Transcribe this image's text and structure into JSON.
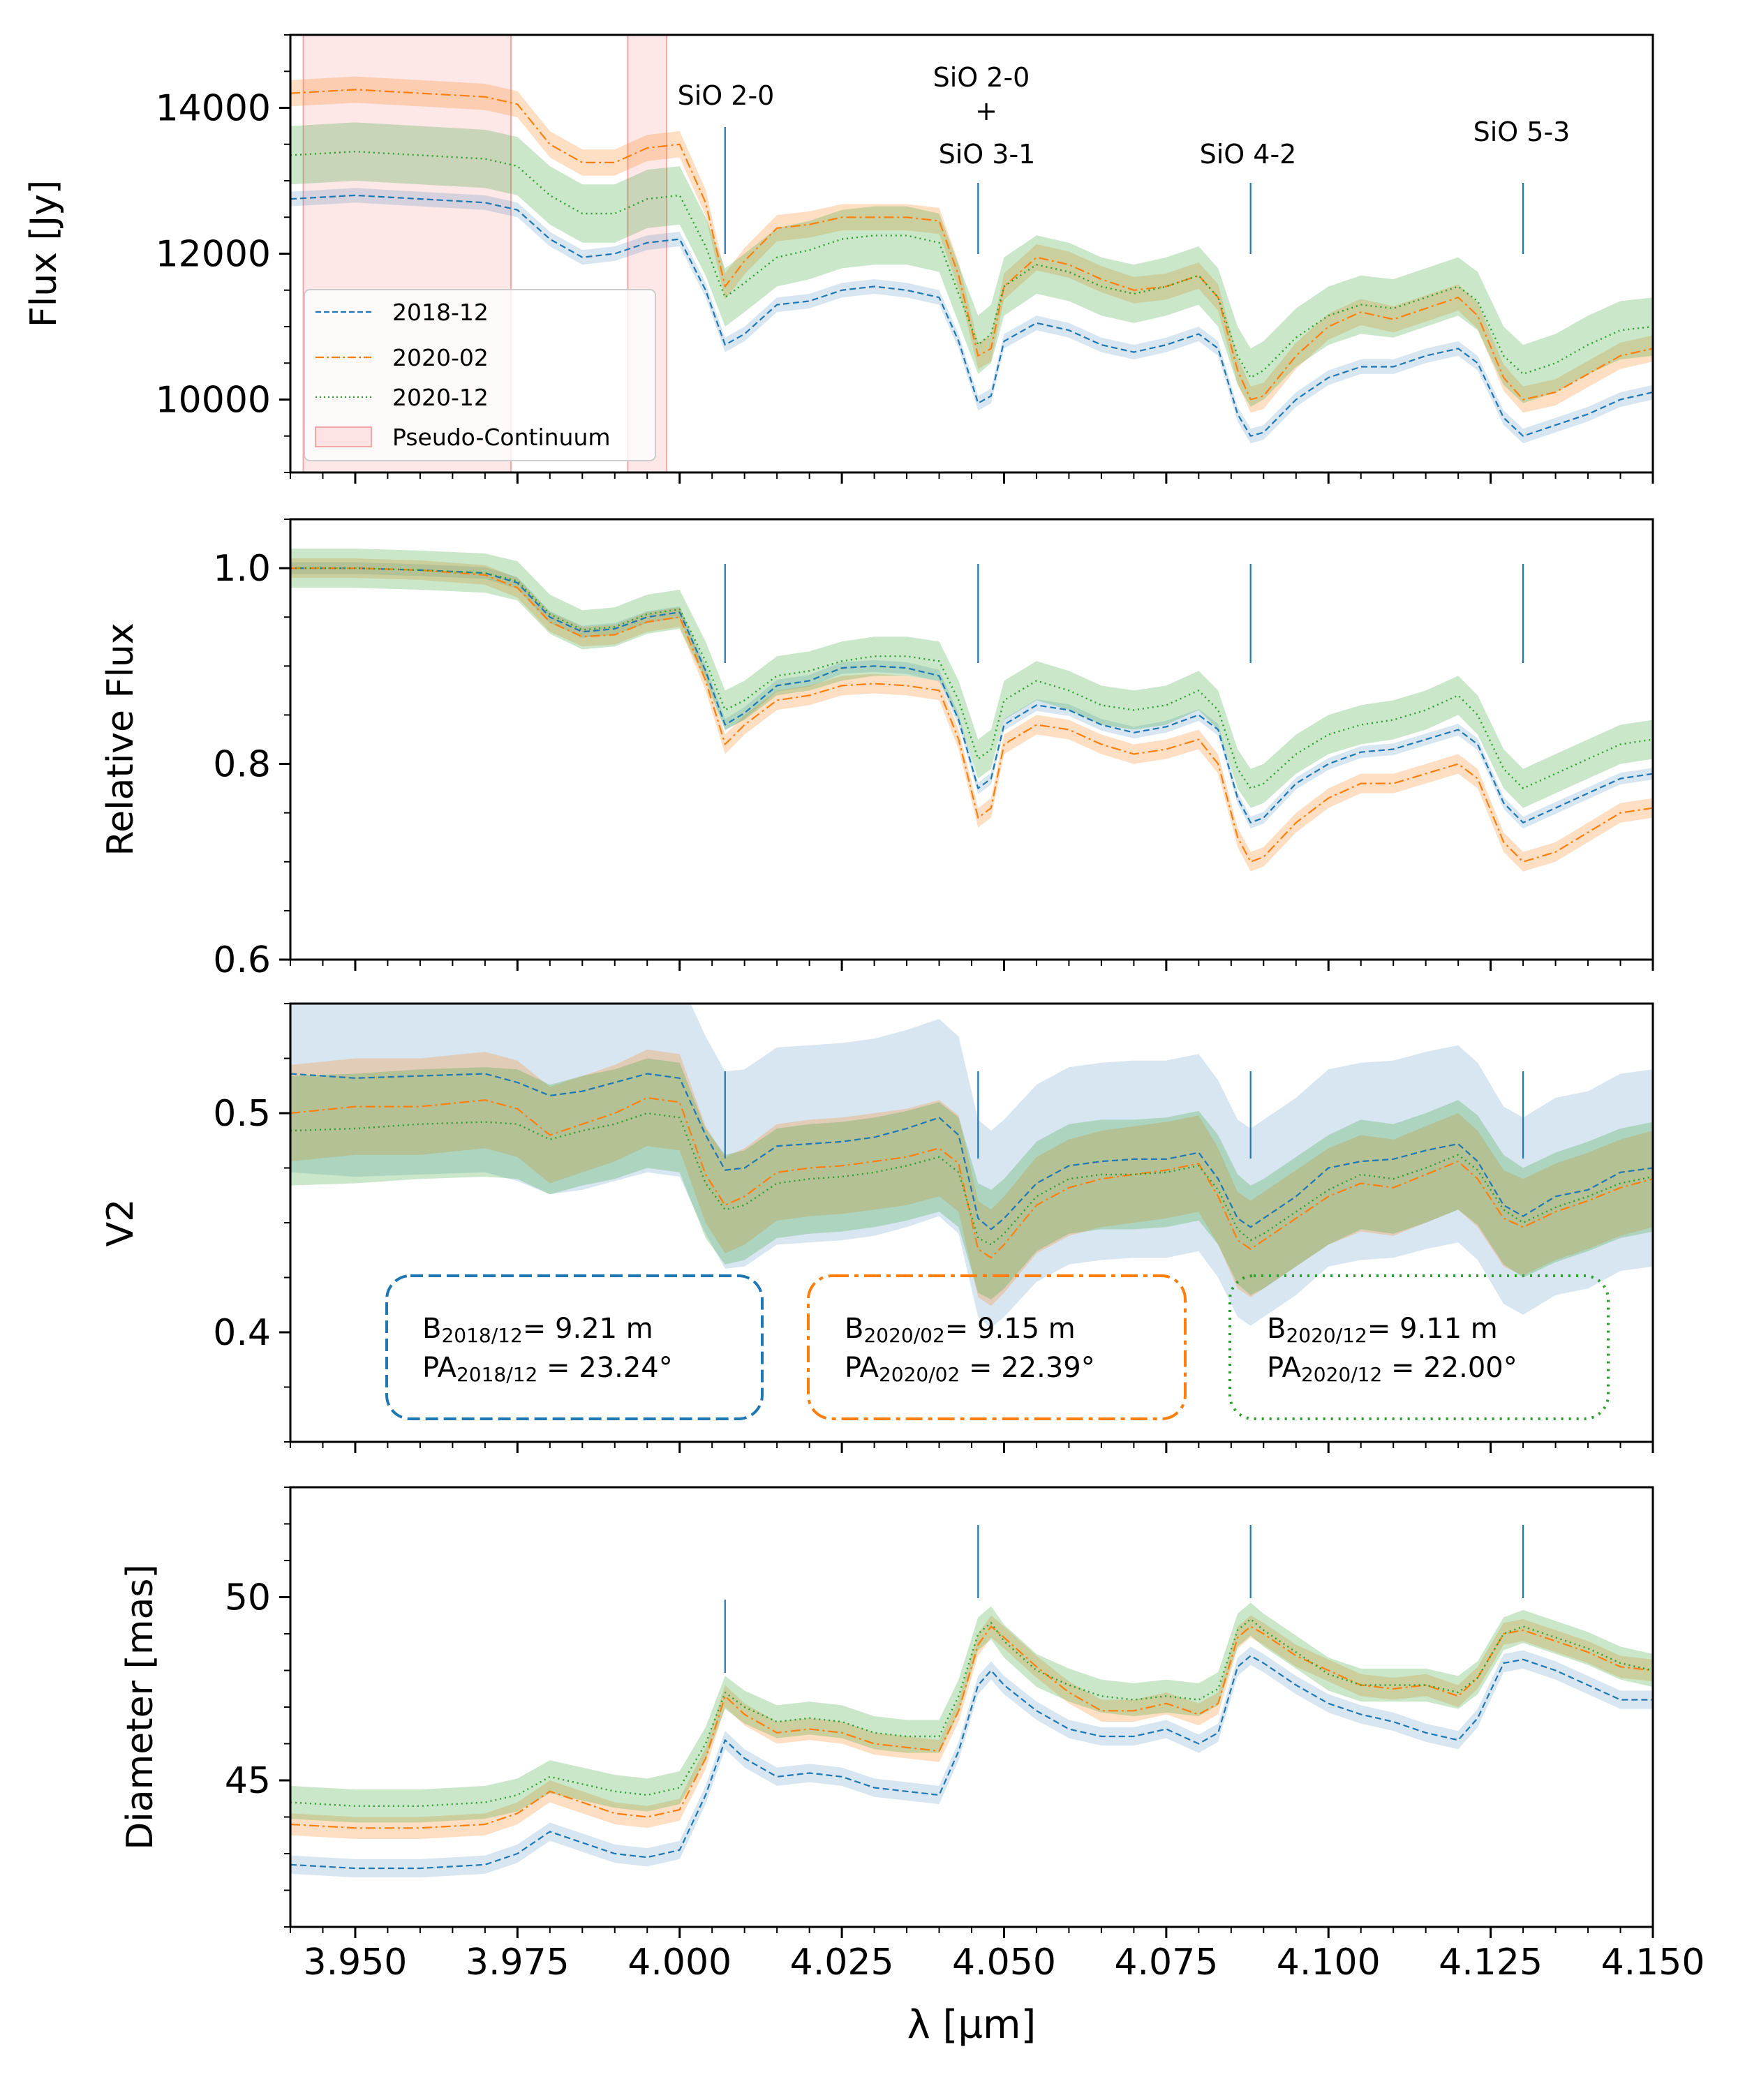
{
  "figure": {
    "xlabel": "λ [µm]",
    "x_ticks": [
      "3.950",
      "3.975",
      "4.000",
      "4.025",
      "4.050",
      "4.075",
      "4.100",
      "4.125",
      "4.150"
    ],
    "xlim": [
      3.94,
      4.15
    ]
  },
  "colors": {
    "2018-12": "#1f77b4",
    "2020-02": "#ff7f0e",
    "2020-12": "#2ca02c",
    "continuum": "#f4a7a7"
  },
  "legend": {
    "placement": "lower-left of top panel",
    "entries": [
      "2018-12",
      "2020-02",
      "2020-12",
      "Pseudo-Continuum"
    ]
  },
  "line_markers": [
    {
      "label": "SiO 2-0",
      "x": 4.007
    },
    {
      "label_lines": [
        "SiO 2-0",
        "+",
        "SiO 3-1"
      ],
      "x": 4.046
    },
    {
      "label": "SiO 4-2",
      "x": 4.088
    },
    {
      "label": "SiO 5-3",
      "x": 4.13
    }
  ],
  "pseudo_continuum": [
    [
      3.942,
      3.974
    ],
    [
      3.992,
      3.998
    ]
  ],
  "baselines": [
    {
      "date": "2018/12",
      "B_label": "B",
      "B_sub": "2018/12",
      "B_val": "= 9.21 m",
      "PA_label": "PA",
      "PA_sub": "2018/12",
      "PA_val": " = 23.24°",
      "style": "dashed"
    },
    {
      "date": "2020/02",
      "B_label": "B",
      "B_sub": "2020/02",
      "B_val": "= 9.15 m",
      "PA_label": "PA",
      "PA_sub": "2020/02",
      "PA_val": " = 22.39°",
      "style": "dashdot"
    },
    {
      "date": "2020/12",
      "B_label": "B",
      "B_sub": "2020/12",
      "B_val": "= 9.11 m",
      "PA_label": "PA",
      "PA_sub": "2020/12",
      "PA_val": " = 22.00°",
      "style": "dotted"
    }
  ],
  "chart_data": [
    {
      "type": "line",
      "panel": "flux",
      "ylabel": "Flux [Jy]",
      "ylim": [
        9000,
        15000
      ],
      "y_ticks": [
        "10000",
        "12000",
        "14000"
      ],
      "x": [
        3.94,
        3.95,
        3.96,
        3.97,
        3.975,
        3.98,
        3.985,
        3.99,
        3.995,
        4.0,
        4.004,
        4.007,
        4.01,
        4.015,
        4.02,
        4.025,
        4.03,
        4.035,
        4.04,
        4.043,
        4.046,
        4.048,
        4.05,
        4.055,
        4.06,
        4.065,
        4.07,
        4.075,
        4.08,
        4.083,
        4.086,
        4.088,
        4.09,
        4.095,
        4.1,
        4.105,
        4.11,
        4.115,
        4.12,
        4.123,
        4.127,
        4.13,
        4.135,
        4.14,
        4.145,
        4.15
      ],
      "series": [
        {
          "name": "2018-12",
          "band": 100,
          "values": [
            12750,
            12800,
            12750,
            12700,
            12600,
            12200,
            11950,
            12000,
            12150,
            12200,
            11500,
            10750,
            10900,
            11300,
            11350,
            11500,
            11550,
            11500,
            11400,
            10800,
            9950,
            10050,
            10800,
            11050,
            10950,
            10750,
            10650,
            10750,
            10900,
            10700,
            9800,
            9500,
            9550,
            10000,
            10300,
            10450,
            10450,
            10600,
            10700,
            10500,
            9750,
            9500,
            9650,
            9800,
            10000,
            10100
          ]
        },
        {
          "name": "2020-02",
          "band": 180,
          "values": [
            14200,
            14250,
            14200,
            14150,
            14050,
            13500,
            13250,
            13250,
            13450,
            13500,
            12700,
            11550,
            11900,
            12350,
            12400,
            12500,
            12500,
            12500,
            12450,
            11700,
            10600,
            10700,
            11550,
            11950,
            11850,
            11650,
            11500,
            11550,
            11700,
            11400,
            10400,
            10000,
            10050,
            10600,
            11000,
            11200,
            11100,
            11250,
            11400,
            11150,
            10300,
            10000,
            10100,
            10350,
            10600,
            10700
          ]
        },
        {
          "name": "2020-12",
          "band": 400,
          "values": [
            13350,
            13400,
            13350,
            13300,
            13200,
            12800,
            12550,
            12550,
            12750,
            12800,
            12100,
            11400,
            11600,
            11950,
            12050,
            12200,
            12250,
            12250,
            12150,
            11450,
            10750,
            10900,
            11550,
            11850,
            11750,
            11550,
            11450,
            11550,
            11700,
            11400,
            10600,
            10300,
            10400,
            10850,
            11150,
            11300,
            11250,
            11400,
            11550,
            11350,
            10600,
            10350,
            10500,
            10750,
            10950,
            11000
          ]
        }
      ]
    },
    {
      "type": "line",
      "panel": "relative",
      "ylabel": "Relative Flux",
      "ylim": [
        0.6,
        1.05
      ],
      "y_ticks": [
        "0.6",
        "0.8",
        "1.0"
      ],
      "x": [
        3.94,
        3.95,
        3.96,
        3.97,
        3.975,
        3.98,
        3.985,
        3.99,
        3.995,
        4.0,
        4.004,
        4.007,
        4.01,
        4.015,
        4.02,
        4.025,
        4.03,
        4.035,
        4.04,
        4.043,
        4.046,
        4.048,
        4.05,
        4.055,
        4.06,
        4.065,
        4.07,
        4.075,
        4.08,
        4.083,
        4.086,
        4.088,
        4.09,
        4.095,
        4.1,
        4.105,
        4.11,
        4.115,
        4.12,
        4.123,
        4.127,
        4.13,
        4.135,
        4.14,
        4.145,
        4.15
      ],
      "series": [
        {
          "name": "2018-12",
          "band": 0.006,
          "values": [
            1.0,
            1.0,
            0.998,
            0.995,
            0.985,
            0.95,
            0.935,
            0.938,
            0.95,
            0.955,
            0.895,
            0.84,
            0.852,
            0.88,
            0.885,
            0.898,
            0.9,
            0.898,
            0.89,
            0.845,
            0.775,
            0.785,
            0.84,
            0.86,
            0.855,
            0.84,
            0.832,
            0.838,
            0.85,
            0.835,
            0.765,
            0.74,
            0.745,
            0.78,
            0.8,
            0.812,
            0.815,
            0.825,
            0.835,
            0.82,
            0.76,
            0.74,
            0.755,
            0.77,
            0.785,
            0.79
          ]
        },
        {
          "name": "2020-02",
          "band": 0.01,
          "values": [
            1.0,
            1.0,
            0.998,
            0.993,
            0.98,
            0.945,
            0.93,
            0.932,
            0.945,
            0.95,
            0.885,
            0.82,
            0.84,
            0.865,
            0.87,
            0.88,
            0.882,
            0.88,
            0.875,
            0.825,
            0.745,
            0.755,
            0.82,
            0.84,
            0.835,
            0.82,
            0.81,
            0.815,
            0.825,
            0.8,
            0.725,
            0.7,
            0.705,
            0.74,
            0.765,
            0.78,
            0.78,
            0.79,
            0.8,
            0.785,
            0.72,
            0.7,
            0.71,
            0.73,
            0.75,
            0.755
          ]
        },
        {
          "name": "2020-12",
          "band": 0.02,
          "values": [
            1.0,
            1.0,
            0.998,
            0.995,
            0.987,
            0.953,
            0.937,
            0.94,
            0.953,
            0.958,
            0.905,
            0.855,
            0.865,
            0.89,
            0.895,
            0.905,
            0.91,
            0.91,
            0.905,
            0.865,
            0.805,
            0.815,
            0.865,
            0.885,
            0.875,
            0.86,
            0.855,
            0.86,
            0.875,
            0.855,
            0.795,
            0.775,
            0.78,
            0.81,
            0.83,
            0.84,
            0.845,
            0.855,
            0.87,
            0.85,
            0.795,
            0.775,
            0.79,
            0.805,
            0.82,
            0.825
          ]
        }
      ]
    },
    {
      "type": "line",
      "panel": "v2",
      "ylabel": "V2",
      "ylim": [
        0.35,
        0.55
      ],
      "y_ticks": [
        "0.4",
        "0.5"
      ],
      "x": [
        3.94,
        3.95,
        3.96,
        3.97,
        3.975,
        3.98,
        3.985,
        3.99,
        3.995,
        4.0,
        4.004,
        4.007,
        4.01,
        4.015,
        4.02,
        4.025,
        4.03,
        4.035,
        4.04,
        4.043,
        4.046,
        4.048,
        4.05,
        4.055,
        4.06,
        4.065,
        4.07,
        4.075,
        4.08,
        4.083,
        4.086,
        4.088,
        4.09,
        4.095,
        4.1,
        4.105,
        4.11,
        4.115,
        4.12,
        4.123,
        4.127,
        4.13,
        4.135,
        4.14,
        4.145,
        4.15
      ],
      "series": [
        {
          "name": "2018-12",
          "band": 0.045,
          "values": [
            0.518,
            0.516,
            0.517,
            0.518,
            0.514,
            0.508,
            0.51,
            0.514,
            0.518,
            0.516,
            0.49,
            0.474,
            0.475,
            0.485,
            0.486,
            0.487,
            0.489,
            0.493,
            0.498,
            0.49,
            0.452,
            0.447,
            0.452,
            0.468,
            0.476,
            0.478,
            0.479,
            0.479,
            0.482,
            0.47,
            0.452,
            0.448,
            0.452,
            0.462,
            0.475,
            0.478,
            0.479,
            0.483,
            0.486,
            0.478,
            0.458,
            0.453,
            0.462,
            0.465,
            0.473,
            0.475
          ]
        },
        {
          "name": "2020-02",
          "band": 0.022,
          "values": [
            0.5,
            0.503,
            0.503,
            0.506,
            0.502,
            0.49,
            0.495,
            0.5,
            0.507,
            0.505,
            0.472,
            0.458,
            0.462,
            0.473,
            0.475,
            0.476,
            0.478,
            0.48,
            0.484,
            0.477,
            0.438,
            0.434,
            0.44,
            0.458,
            0.466,
            0.47,
            0.472,
            0.474,
            0.477,
            0.462,
            0.442,
            0.438,
            0.442,
            0.452,
            0.462,
            0.468,
            0.466,
            0.472,
            0.478,
            0.47,
            0.452,
            0.448,
            0.455,
            0.46,
            0.466,
            0.47
          ]
        },
        {
          "name": "2020-12",
          "band": 0.025,
          "values": [
            0.492,
            0.493,
            0.495,
            0.496,
            0.495,
            0.488,
            0.492,
            0.495,
            0.5,
            0.498,
            0.468,
            0.456,
            0.458,
            0.468,
            0.47,
            0.471,
            0.473,
            0.476,
            0.48,
            0.473,
            0.443,
            0.44,
            0.445,
            0.462,
            0.47,
            0.472,
            0.472,
            0.473,
            0.476,
            0.465,
            0.447,
            0.442,
            0.445,
            0.455,
            0.465,
            0.472,
            0.47,
            0.475,
            0.481,
            0.474,
            0.456,
            0.45,
            0.457,
            0.462,
            0.468,
            0.471
          ]
        }
      ]
    },
    {
      "type": "line",
      "panel": "diameter",
      "ylabel": "Diameter [mas]",
      "ylim": [
        41,
        53
      ],
      "y_ticks": [
        "45",
        "50"
      ],
      "x": [
        3.94,
        3.95,
        3.96,
        3.97,
        3.975,
        3.98,
        3.985,
        3.99,
        3.995,
        4.0,
        4.004,
        4.007,
        4.01,
        4.015,
        4.02,
        4.025,
        4.03,
        4.035,
        4.04,
        4.043,
        4.046,
        4.048,
        4.05,
        4.055,
        4.06,
        4.065,
        4.07,
        4.075,
        4.08,
        4.083,
        4.086,
        4.088,
        4.09,
        4.095,
        4.1,
        4.105,
        4.11,
        4.115,
        4.12,
        4.123,
        4.127,
        4.13,
        4.135,
        4.14,
        4.145,
        4.15
      ],
      "series": [
        {
          "name": "2018-12",
          "band": 0.25,
          "values": [
            42.7,
            42.6,
            42.6,
            42.7,
            43.0,
            43.6,
            43.3,
            43.0,
            42.9,
            43.1,
            44.6,
            46.1,
            45.6,
            45.1,
            45.2,
            45.1,
            44.8,
            44.7,
            44.6,
            45.8,
            47.6,
            48.0,
            47.6,
            46.9,
            46.4,
            46.2,
            46.2,
            46.4,
            46.0,
            46.3,
            48.1,
            48.4,
            48.2,
            47.6,
            47.1,
            46.8,
            46.6,
            46.3,
            46.1,
            46.7,
            48.2,
            48.3,
            48.0,
            47.6,
            47.2,
            47.2
          ]
        },
        {
          "name": "2020-02",
          "band": 0.3,
          "values": [
            43.8,
            43.7,
            43.7,
            43.8,
            44.1,
            44.7,
            44.4,
            44.1,
            44.0,
            44.2,
            45.6,
            47.3,
            46.8,
            46.3,
            46.4,
            46.3,
            46.0,
            45.9,
            45.8,
            46.9,
            48.7,
            49.2,
            48.9,
            48.1,
            47.4,
            46.9,
            46.9,
            47.1,
            46.8,
            47.1,
            48.9,
            49.2,
            49.0,
            48.4,
            48.0,
            47.6,
            47.5,
            47.6,
            47.3,
            47.8,
            49.0,
            49.1,
            48.8,
            48.5,
            48.1,
            48.0
          ]
        },
        {
          "name": "2020-12",
          "band": 0.45,
          "values": [
            44.4,
            44.3,
            44.3,
            44.4,
            44.6,
            45.1,
            44.9,
            44.7,
            44.6,
            44.8,
            46.0,
            47.4,
            47.0,
            46.6,
            46.7,
            46.6,
            46.3,
            46.2,
            46.2,
            47.3,
            49.0,
            49.3,
            48.8,
            48.0,
            47.6,
            47.3,
            47.2,
            47.3,
            47.2,
            47.5,
            49.1,
            49.4,
            49.1,
            48.5,
            47.9,
            47.6,
            47.6,
            47.6,
            47.4,
            47.8,
            49.0,
            49.2,
            48.9,
            48.6,
            48.2,
            48.0
          ]
        }
      ]
    }
  ]
}
